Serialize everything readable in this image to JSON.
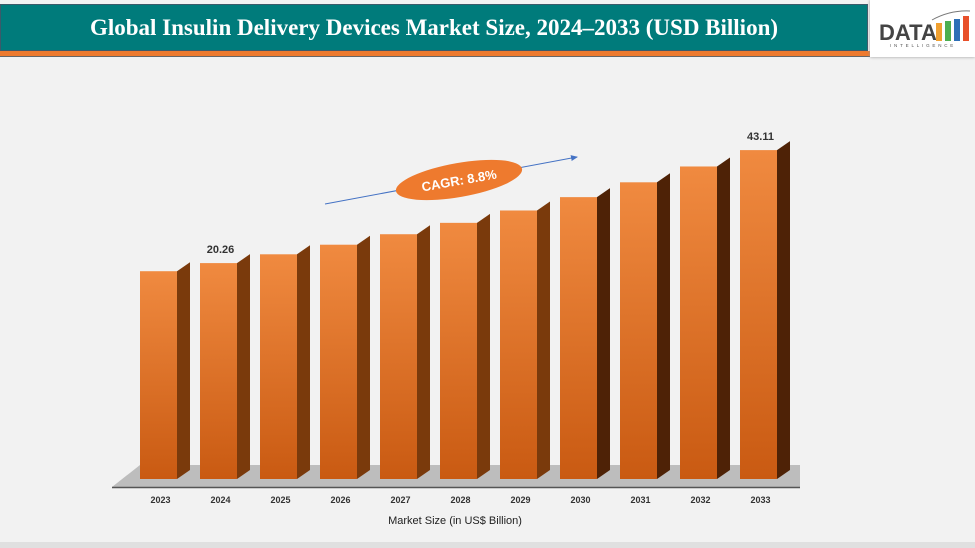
{
  "header": {
    "title": "Global Insulin Delivery Devices Market Size, 2024–2033 (USD Billion)"
  },
  "logo": {
    "text": "DATA",
    "subtext": "INTELLIGENCE"
  },
  "colors": {
    "header_bg": "#007b7b",
    "accent": "#ee7a2e",
    "bar_front": "#c95a12",
    "bar_front_light": "#f08a40",
    "bar_side": "#7a3a0c",
    "floor": "#bdbdbd",
    "arrow": "#4472c4"
  },
  "chart_data": {
    "type": "bar",
    "style": "3d-column",
    "title": "",
    "xlabel": "Market Size (in US$ Billion)",
    "ylabel": "",
    "categories": [
      "2023",
      "2024",
      "2025",
      "2026",
      "2027",
      "2028",
      "2029",
      "2030",
      "2031",
      "2032",
      "2033"
    ],
    "values": [
      18.62,
      20.26,
      22.04,
      23.98,
      26.1,
      28.4,
      30.9,
      33.6,
      36.6,
      39.8,
      43.11
    ],
    "data_labels": {
      "1": "20.26",
      "10": "43.11"
    },
    "annotation": "CAGR: 8.8%",
    "grid": false,
    "legend": "none"
  }
}
